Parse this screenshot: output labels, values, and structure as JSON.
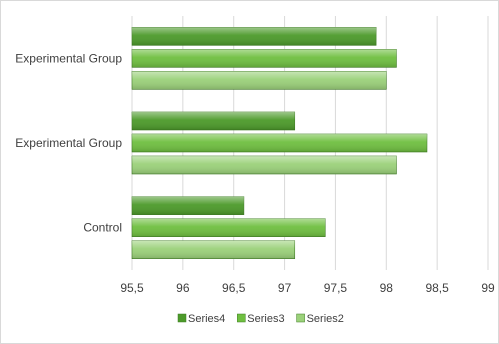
{
  "chart_data": {
    "type": "bar",
    "orientation": "horizontal",
    "categories": [
      "Control",
      "Experimental Group",
      "Experimental Group"
    ],
    "series": [
      {
        "name": "Series2",
        "values": [
          97.1,
          98.1,
          98.0
        ],
        "color": "#9bd17a"
      },
      {
        "name": "Series3",
        "values": [
          97.4,
          98.4,
          98.1
        ],
        "color": "#6fbf40"
      },
      {
        "name": "Series4",
        "values": [
          96.6,
          97.1,
          97.9
        ],
        "color": "#4c9a2a"
      }
    ],
    "x_ticks": [
      "95,5",
      "96",
      "96,5",
      "97",
      "97,5",
      "98",
      "98,5",
      "99"
    ],
    "xlim": [
      95.5,
      99
    ],
    "grid": "vertical",
    "legend": {
      "position": "bottom",
      "items": [
        "Series4",
        "Series3",
        "Series2"
      ]
    },
    "title": "",
    "xlabel": "",
    "ylabel": ""
  }
}
